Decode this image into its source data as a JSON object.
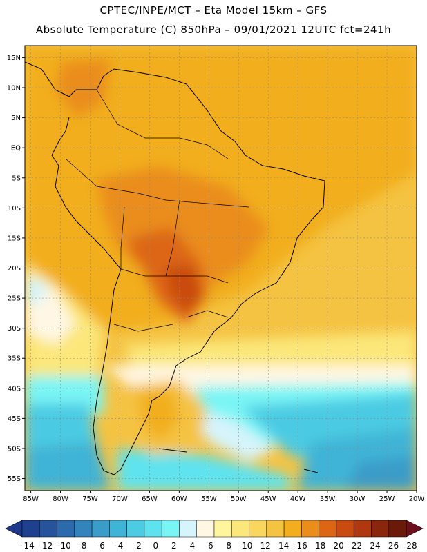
{
  "header": {
    "line1": "CPTEC/INPE/MCT –  Eta Model 15km – GFS",
    "line2": "Absolute Temperature (C) 850hPa – 09/01/2021 12UTC fct=241h"
  },
  "map": {
    "lat_labels": [
      "15N",
      "10N",
      "5N",
      "EQ",
      "5S",
      "10S",
      "15S",
      "20S",
      "25S",
      "30S",
      "35S",
      "40S",
      "45S",
      "50S",
      "55S"
    ],
    "lon_labels": [
      "85W",
      "80W",
      "75W",
      "70W",
      "65W",
      "60W",
      "55W",
      "50W",
      "45W",
      "40W",
      "35W",
      "30W",
      "25W",
      "20W"
    ],
    "lat_range": [
      -57,
      17
    ],
    "lon_range": [
      -86,
      -20
    ]
  },
  "colorbar": {
    "labels": [
      "-14",
      "-12",
      "-10",
      "-8",
      "-6",
      "-4",
      "-2",
      "0",
      "2",
      "4",
      "6",
      "8",
      "10",
      "12",
      "14",
      "16",
      "18",
      "20",
      "22",
      "24",
      "26",
      "28"
    ],
    "colors": [
      "#1f3f8f",
      "#25549d",
      "#2c6aae",
      "#3384bd",
      "#3a9cc9",
      "#40b4d6",
      "#4ccbe3",
      "#5ee3ee",
      "#7af5f5",
      "#d6f4fb",
      "#fff7e4",
      "#fff59c",
      "#fbe77a",
      "#f9d65e",
      "#f5c342",
      "#f2ae1e",
      "#ea8d1a",
      "#dd6614",
      "#c94b10",
      "#b0380e",
      "#8a260b",
      "#6b1a0a"
    ],
    "under_color": "#1f3a8a",
    "over_color": "#6b0f1a"
  }
}
